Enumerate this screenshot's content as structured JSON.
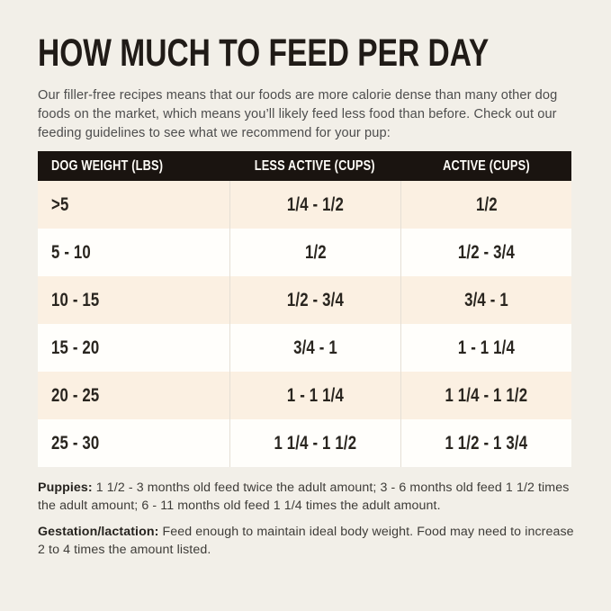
{
  "colors": {
    "page_background": "#f2efe8",
    "table_header_background": "#1a1410",
    "table_header_text": "#fffdf8",
    "row_shaded_background": "#fbf0e2",
    "row_plain_background": "#fffefb",
    "column_divider": "#e5dfd5",
    "title_text": "#201b17",
    "body_text": "#4d4d4d"
  },
  "title": "HOW MUCH TO FEED PER DAY",
  "intro": {
    "lines": [
      "Our filler-free recipes means that our foods are more calorie dense than many other dog",
      "foods on the market, which means you’ll likely feed less food than before. Check out our",
      "feeding guidelines to see what we recommend for your pup:"
    ]
  },
  "table": {
    "headers": [
      "DOG WEIGHT (LBS)",
      "LESS ACTIVE (CUPS)",
      "ACTIVE (CUPS)"
    ],
    "rows": [
      [
        ">5",
        "1/4 - 1/2",
        "1/2"
      ],
      [
        "5 - 10",
        "1/2",
        "1/2 - 3/4"
      ],
      [
        "10 - 15",
        "1/2 - 3/4",
        "3/4 - 1"
      ],
      [
        "15 - 20",
        "3/4 - 1",
        "1 - 1 1/4"
      ],
      [
        "20 - 25",
        "1 - 1 1/4",
        "1 1/4 - 1 1/2"
      ],
      [
        "25 - 30",
        "1 1/4 - 1 1/2",
        "1 1/2 - 1 3/4"
      ]
    ]
  },
  "notes": [
    {
      "label": "Puppies:",
      "text": " 1 1/2 - 3 months old feed twice the adult amount; 3 - 6 months old feed 1 1/2 times the adult amount; 6 - 11 months old feed 1 1/4 times the adult amount."
    },
    {
      "label": "Gestation/lactation:",
      "text": " Feed enough to maintain ideal body weight. Food may need to increase 2 to 4 times the amount listed."
    }
  ]
}
